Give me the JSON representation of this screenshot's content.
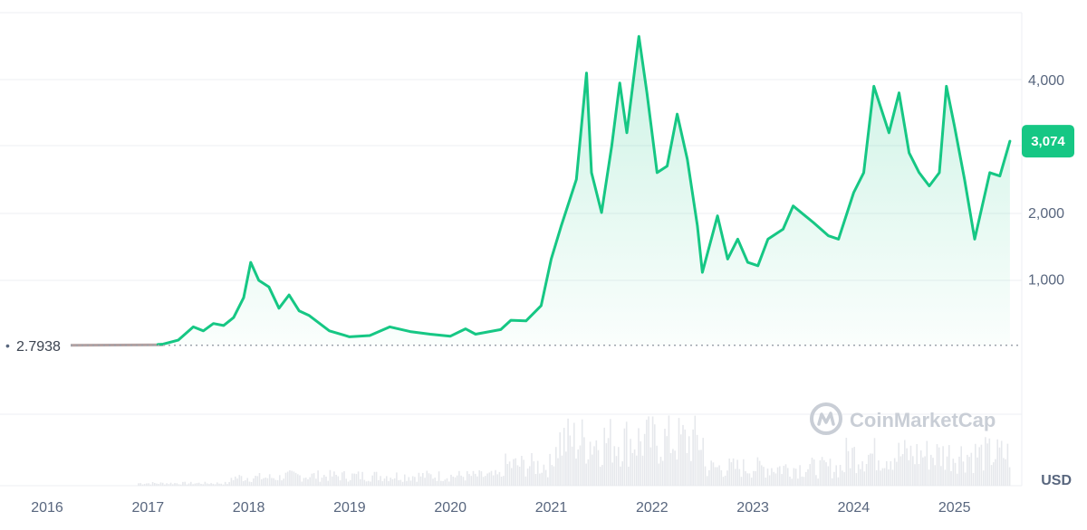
{
  "chart_data": {
    "type": "area",
    "currency_label": "USD",
    "current_value_label": "3,074",
    "baseline_label": "2.7938",
    "baseline_value": 2.7938,
    "watermark": "CoinMarketCap",
    "x_ticks": [
      "2016",
      "2017",
      "2018",
      "2019",
      "2020",
      "2021",
      "2022",
      "2023",
      "2024",
      "2025"
    ],
    "y_ticks": [
      {
        "value": 1000,
        "label": "1,000"
      },
      {
        "value": 2000,
        "label": "2,000"
      },
      {
        "value": 4000,
        "label": "4,000"
      }
    ],
    "ylim": [
      0,
      4800
    ],
    "x_range": [
      2015.85,
      2025.65
    ],
    "grid": true,
    "colors": {
      "line": "#16c784",
      "price_label_bg": "#16c784",
      "grid": "#eceff3",
      "axis_text": "#58667e",
      "baseline": "#9ea4ad",
      "early_line": "#b3a1a1",
      "volume": "#e6e8ec",
      "watermark": "#c9ced6"
    },
    "series": [
      {
        "values": [
          [
            2016.1,
            2.8
          ],
          [
            2016.4,
            10
          ],
          [
            2016.8,
            8
          ],
          [
            2017.0,
            9
          ],
          [
            2017.15,
            20
          ],
          [
            2017.3,
            80
          ],
          [
            2017.45,
            280
          ],
          [
            2017.55,
            220
          ],
          [
            2017.65,
            330
          ],
          [
            2017.75,
            300
          ],
          [
            2017.85,
            420
          ],
          [
            2017.95,
            720
          ],
          [
            2018.02,
            1250
          ],
          [
            2018.1,
            980
          ],
          [
            2018.2,
            880
          ],
          [
            2018.3,
            560
          ],
          [
            2018.4,
            760
          ],
          [
            2018.5,
            520
          ],
          [
            2018.6,
            450
          ],
          [
            2018.8,
            220
          ],
          [
            2019.0,
            130
          ],
          [
            2019.2,
            150
          ],
          [
            2019.4,
            280
          ],
          [
            2019.6,
            210
          ],
          [
            2019.8,
            170
          ],
          [
            2020.0,
            140
          ],
          [
            2020.15,
            250
          ],
          [
            2020.25,
            170
          ],
          [
            2020.5,
            240
          ],
          [
            2020.6,
            380
          ],
          [
            2020.75,
            370
          ],
          [
            2020.9,
            600
          ],
          [
            2021.0,
            1300
          ],
          [
            2021.1,
            1800
          ],
          [
            2021.25,
            2500
          ],
          [
            2021.35,
            4100
          ],
          [
            2021.4,
            2600
          ],
          [
            2021.5,
            2000
          ],
          [
            2021.6,
            3000
          ],
          [
            2021.68,
            3950
          ],
          [
            2021.75,
            3200
          ],
          [
            2021.87,
            4650
          ],
          [
            2021.95,
            3800
          ],
          [
            2022.05,
            2600
          ],
          [
            2022.15,
            2700
          ],
          [
            2022.25,
            3480
          ],
          [
            2022.35,
            2800
          ],
          [
            2022.45,
            1800
          ],
          [
            2022.5,
            1100
          ],
          [
            2022.65,
            1950
          ],
          [
            2022.75,
            1300
          ],
          [
            2022.85,
            1600
          ],
          [
            2022.95,
            1250
          ],
          [
            2023.05,
            1200
          ],
          [
            2023.15,
            1600
          ],
          [
            2023.3,
            1750
          ],
          [
            2023.4,
            2100
          ],
          [
            2023.6,
            1850
          ],
          [
            2023.75,
            1650
          ],
          [
            2023.85,
            1600
          ],
          [
            2024.0,
            2300
          ],
          [
            2024.1,
            2600
          ],
          [
            2024.2,
            3900
          ],
          [
            2024.35,
            3200
          ],
          [
            2024.45,
            3800
          ],
          [
            2024.55,
            2900
          ],
          [
            2024.65,
            2600
          ],
          [
            2024.75,
            2400
          ],
          [
            2024.85,
            2600
          ],
          [
            2024.92,
            3900
          ],
          [
            2025.0,
            3300
          ],
          [
            2025.1,
            2500
          ],
          [
            2025.2,
            1600
          ],
          [
            2025.35,
            2600
          ],
          [
            2025.45,
            2550
          ],
          [
            2025.55,
            3074
          ]
        ]
      }
    ]
  }
}
